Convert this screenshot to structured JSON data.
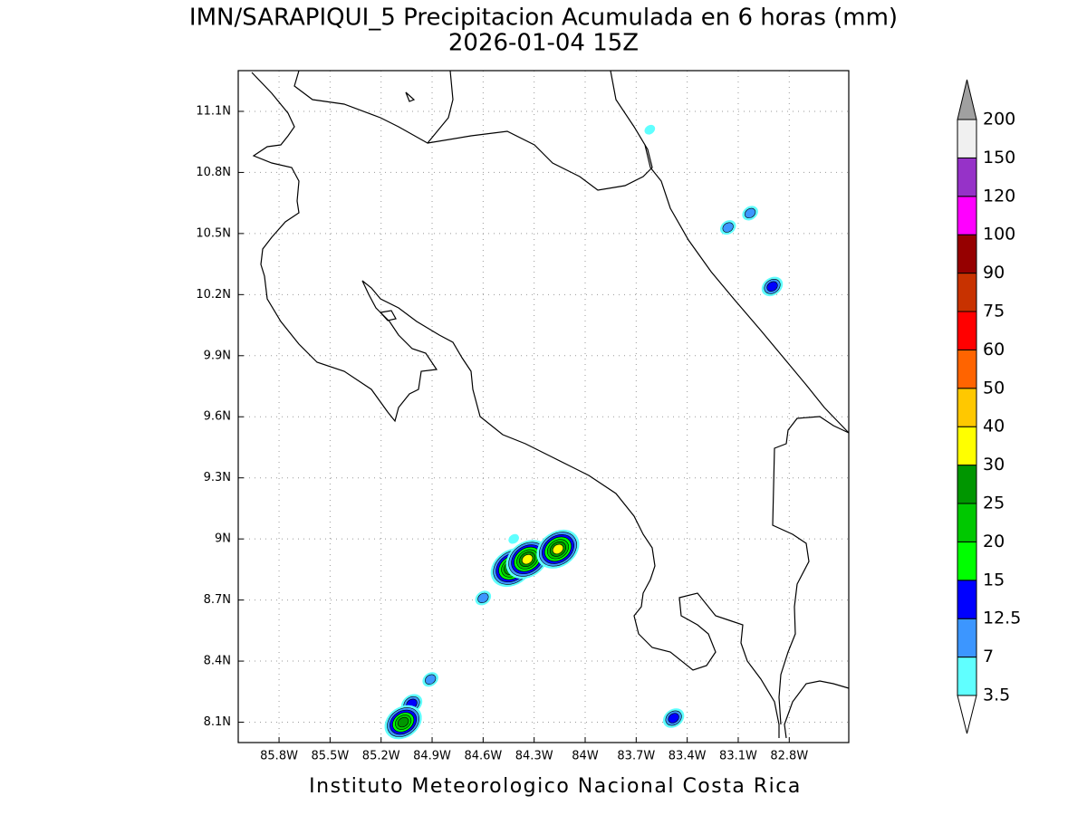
{
  "title": "IMN/SARAPIQUI_5 Precipitacion Acumulada en 6 horas (mm)",
  "subtitle": "2026-01-04 15Z",
  "footer": "Instituto Meteorologico Nacional Costa Rica",
  "map": {
    "xlim": [
      -86.04,
      -82.45
    ],
    "ylim": [
      8.0,
      11.3
    ],
    "xticks": [
      {
        "value": -85.8,
        "label": "85.8W"
      },
      {
        "value": -85.5,
        "label": "85.5W"
      },
      {
        "value": -85.2,
        "label": "85.2W"
      },
      {
        "value": -84.9,
        "label": "84.9W"
      },
      {
        "value": -84.6,
        "label": "84.6W"
      },
      {
        "value": -84.3,
        "label": "84.3W"
      },
      {
        "value": -84.0,
        "label": "84W"
      },
      {
        "value": -83.7,
        "label": "83.7W"
      },
      {
        "value": -83.4,
        "label": "83.4W"
      },
      {
        "value": -83.1,
        "label": "83.1W"
      },
      {
        "value": -82.8,
        "label": "82.8W"
      }
    ],
    "yticks": [
      {
        "value": 8.1,
        "label": "8.1N"
      },
      {
        "value": 8.4,
        "label": "8.4N"
      },
      {
        "value": 8.7,
        "label": "8.7N"
      },
      {
        "value": 9.0,
        "label": "9N"
      },
      {
        "value": 9.3,
        "label": "9.3N"
      },
      {
        "value": 9.6,
        "label": "9.6N"
      },
      {
        "value": 9.9,
        "label": "9.9N"
      },
      {
        "value": 10.2,
        "label": "10.2N"
      },
      {
        "value": 10.5,
        "label": "10.5N"
      },
      {
        "value": 10.8,
        "label": "10.8N"
      },
      {
        "value": 11.1,
        "label": "11.1N"
      }
    ],
    "grid": true,
    "cells": [
      {
        "lon": -83.16,
        "lat": 10.53,
        "value": 7
      },
      {
        "lon": -83.03,
        "lat": 10.6,
        "value": 7
      },
      {
        "lon": -82.9,
        "lat": 10.24,
        "value": 12.5
      },
      {
        "lon": -84.43,
        "lat": 8.86,
        "value": 30
      },
      {
        "lon": -84.34,
        "lat": 8.9,
        "value": 30
      },
      {
        "lon": -84.16,
        "lat": 8.95,
        "value": 30
      },
      {
        "lon": -84.6,
        "lat": 8.71,
        "value": 7
      },
      {
        "lon": -84.91,
        "lat": 8.31,
        "value": 7
      },
      {
        "lon": -85.02,
        "lat": 8.19,
        "value": 12.5
      },
      {
        "lon": -85.07,
        "lat": 8.1,
        "value": 25
      },
      {
        "lon": -83.48,
        "lat": 8.12,
        "value": 12.5
      },
      {
        "lon": -84.42,
        "lat": 9.0,
        "value": 3.5
      },
      {
        "lon": -83.62,
        "lat": 11.01,
        "value": 3.5
      }
    ]
  },
  "colorbar": {
    "levels": [
      3.5,
      7,
      12.5,
      15,
      20,
      25,
      30,
      40,
      50,
      60,
      75,
      90,
      100,
      120,
      150,
      200
    ],
    "colors": [
      "#60ffff",
      "#3c96ff",
      "#0000ff",
      "#00ff00",
      "#00c800",
      "#009600",
      "#ffff00",
      "#ffc800",
      "#ff6400",
      "#ff0000",
      "#c83200",
      "#960000",
      "#ff00ff",
      "#9632c8",
      "#f0f0f0"
    ],
    "under_color": "#ffffff",
    "over_color": "#a0a0a0"
  }
}
